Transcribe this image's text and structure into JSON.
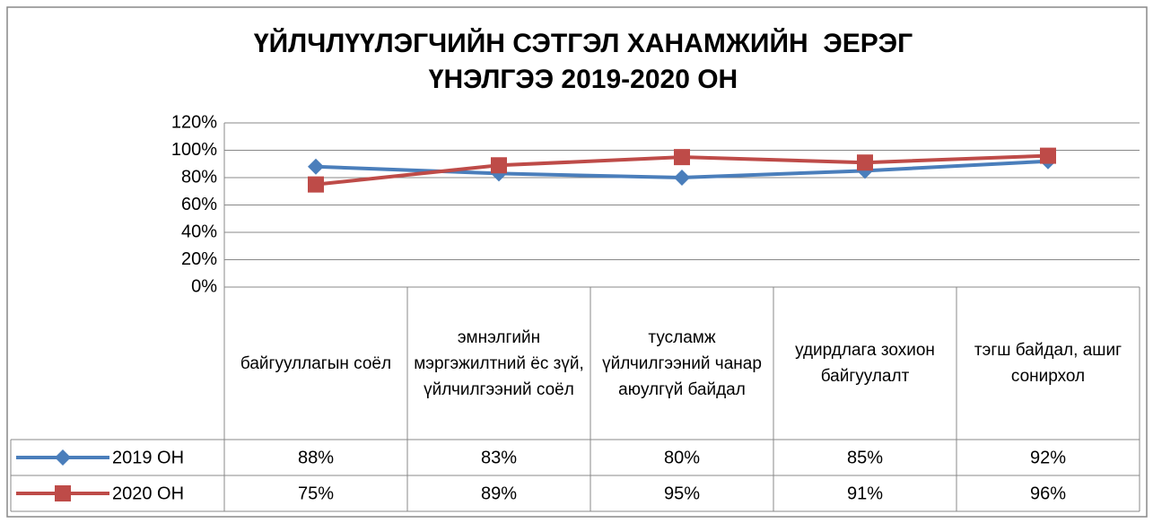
{
  "chart_data": {
    "type": "line",
    "title": "ҮЙЛЧЛҮҮЛЭГЧИЙН СЭТГЭЛ ХАНАМЖИЙН  ЭЕРЭГ",
    "subtitle": "ҮНЭЛГЭЭ 2019-2020 ОН",
    "categories": [
      "байгууллагын соёл",
      "эмнэлгийн мэргэжилтний ёс зүй, үйлчилгээний соёл",
      "тусламж үйлчилгээний чанар аюулгүй байдал",
      "удирдлага зохион байгуулалт",
      "тэгш байдал, ашиг сонирхол"
    ],
    "series": [
      {
        "name": "2019 ОН",
        "color": "#4a7ebb",
        "marker": "diamond",
        "values": [
          88,
          83,
          80,
          85,
          92
        ],
        "value_labels": [
          "88%",
          "83%",
          "80%",
          "85%",
          "92%"
        ]
      },
      {
        "name": "2020 ОН",
        "color": "#be4b48",
        "marker": "square",
        "values": [
          75,
          89,
          95,
          91,
          96
        ],
        "value_labels": [
          "75%",
          "89%",
          "95%",
          "91%",
          "96%"
        ]
      }
    ],
    "ylim": [
      0,
      120
    ],
    "yticks": [
      {
        "value": 0,
        "label": "0%"
      },
      {
        "value": 20,
        "label": "20%"
      },
      {
        "value": 40,
        "label": "40%"
      },
      {
        "value": 60,
        "label": "60%"
      },
      {
        "value": 80,
        "label": "80%"
      },
      {
        "value": 100,
        "label": "100%"
      },
      {
        "value": 120,
        "label": "120%"
      }
    ],
    "grid": true
  }
}
